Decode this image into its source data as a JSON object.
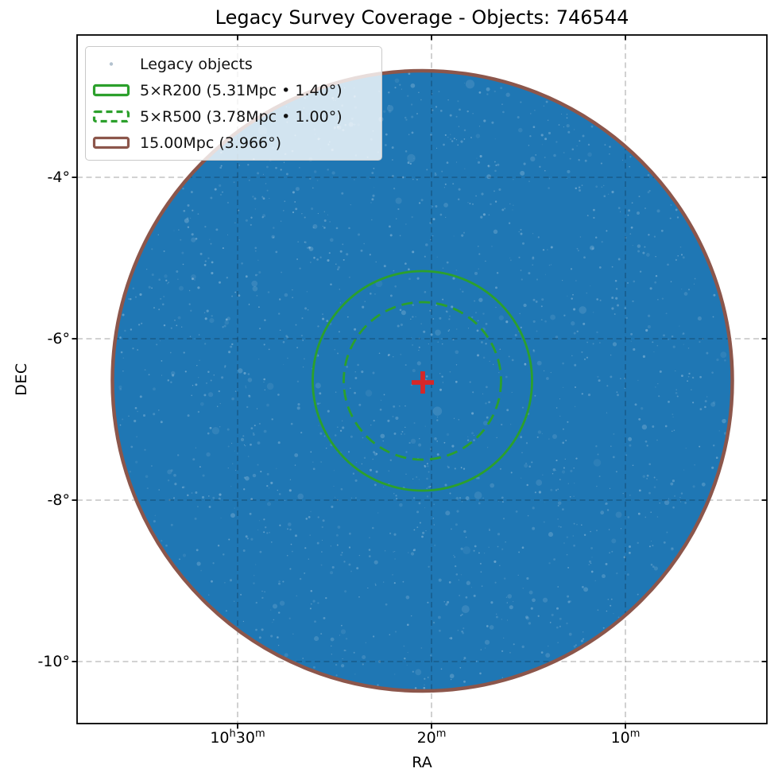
{
  "page": {
    "title": "Legacy Survey Coverage - Objects: 746544"
  },
  "chart_data": {
    "type": "scatter",
    "title": "Legacy Survey Coverage - Objects: 746544",
    "object_count": 746544,
    "xlabel": "RA",
    "ylabel": "DEC",
    "grid": true,
    "legend_position": "upper left",
    "x_axis": {
      "inverted_ra": true,
      "ticks": [
        {
          "plain": "10h30m",
          "parts": [
            {
              "t": "10"
            },
            {
              "t": "h",
              "sup": true
            },
            {
              "t": "30"
            },
            {
              "t": "m",
              "sup": true
            }
          ]
        },
        {
          "plain": "20m",
          "parts": [
            {
              "t": "20"
            },
            {
              "t": "m",
              "sup": true
            }
          ]
        },
        {
          "plain": "10m",
          "parts": [
            {
              "t": "10"
            },
            {
              "t": "m",
              "sup": true
            }
          ]
        }
      ]
    },
    "y_axis": {
      "ticks": [
        {
          "label": "-4°"
        },
        {
          "label": "-6°"
        },
        {
          "label": "-8°"
        },
        {
          "label": "-10°"
        }
      ]
    },
    "series": [
      {
        "name": "Legacy objects",
        "type": "dense-scatter-disk",
        "marker": "point",
        "color": "#1f77b4"
      }
    ],
    "overlays": [
      {
        "name": "5×R200",
        "legend_label": "5×R200 (5.31Mpc • 1.40°)",
        "radius_mpc": 5.31,
        "radius_deg": 1.4,
        "line_style": "solid",
        "color": "#2ca02c"
      },
      {
        "name": "5×R500",
        "legend_label": "5×R500 (3.78Mpc • 1.00°)",
        "radius_mpc": 3.78,
        "radius_deg": 1.0,
        "line_style": "dashed",
        "color": "#2ca02c"
      },
      {
        "name": "15.00Mpc",
        "legend_label": "15.00Mpc (3.966°)",
        "radius_mpc": 15.0,
        "radius_deg": 3.966,
        "line_style": "solid",
        "color": "#8c564b"
      }
    ],
    "center_marker": {
      "symbol": "+",
      "color": "#d62728"
    },
    "legend": {
      "entries": [
        {
          "label": "Legacy objects",
          "marker": "dot",
          "color": "#b3c2cf"
        },
        {
          "label": "5×R200 (5.31Mpc • 1.40°)",
          "marker": "rect-solid",
          "color": "#2ca02c"
        },
        {
          "label": "5×R500 (3.78Mpc • 1.00°)",
          "marker": "rect-dashed",
          "color": "#2ca02c"
        },
        {
          "label": "15.00Mpc (3.966°)",
          "marker": "rect-solid",
          "color": "#8c564b"
        }
      ]
    },
    "colors": {
      "background": "#ffffff",
      "grid": "rgba(0,0,0,0.28)",
      "axis": "#000000"
    }
  }
}
